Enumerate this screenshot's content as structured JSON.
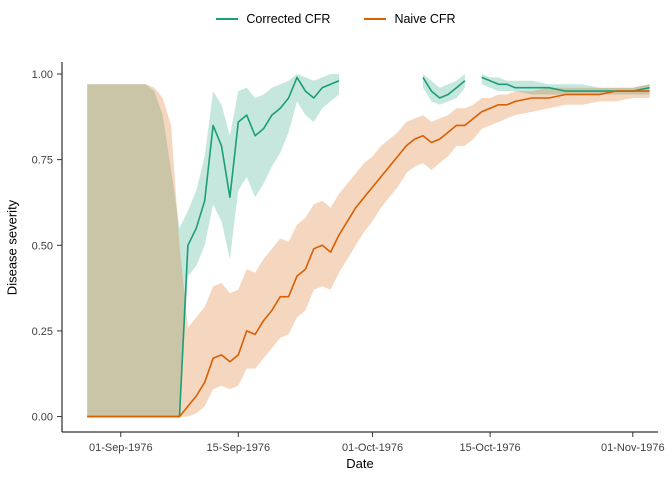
{
  "figure": {
    "bg_color": "#ffffff",
    "axis_color": "#000000",
    "tick_color": "#333333",
    "tick_label_color": "#404040"
  },
  "legend": {
    "items": [
      {
        "label": "Corrected CFR",
        "color": "#1b9e77"
      },
      {
        "label": "Naive CFR",
        "color": "#d95f02"
      }
    ]
  },
  "chart_data": {
    "type": "line",
    "title": "",
    "xlabel": "Date",
    "ylabel": "Disease severity",
    "grid": false,
    "legend_position": "top-center",
    "xlim_days": [
      0,
      71
    ],
    "ylim": [
      -0.045,
      1.035
    ],
    "x_ticks": [
      {
        "day": 7,
        "label": "01-Sep-1976"
      },
      {
        "day": 21,
        "label": "15-Sep-1976"
      },
      {
        "day": 37,
        "label": "01-Oct-1976"
      },
      {
        "day": 51,
        "label": "15-Oct-1976"
      },
      {
        "day": 68,
        "label": "01-Nov-1976"
      }
    ],
    "y_ticks": [
      {
        "value": 0.0,
        "label": "0.00"
      },
      {
        "value": 0.25,
        "label": "0.25"
      },
      {
        "value": 0.5,
        "label": "0.50"
      },
      {
        "value": 0.75,
        "label": "0.75"
      },
      {
        "value": 1.0,
        "label": "1.00"
      }
    ],
    "series": [
      {
        "name": "Corrected CFR",
        "color": "#1b9e77",
        "ribbon_opacity": 0.25,
        "point_format": [
          "day_since_25-Aug-1976",
          "value",
          "ci_lower",
          "ci_upper"
        ],
        "points": [
          [
            3,
            0,
            0,
            0.97
          ],
          [
            5,
            0,
            0,
            0.97
          ],
          [
            7,
            0,
            0,
            0.97
          ],
          [
            9,
            0,
            0,
            0.97
          ],
          [
            10,
            0,
            0,
            0.97
          ],
          [
            11,
            0,
            0,
            0.95
          ],
          [
            12,
            0,
            0,
            0.88
          ],
          [
            13,
            0,
            0,
            0.72
          ],
          [
            14,
            0,
            0,
            0.55
          ],
          [
            15,
            0.5,
            0.41,
            0.6
          ],
          [
            16,
            0.55,
            0.44,
            0.66
          ],
          [
            17,
            0.63,
            0.5,
            0.76
          ],
          [
            18,
            0.85,
            0.62,
            0.95
          ],
          [
            19,
            0.79,
            0.57,
            0.91
          ],
          [
            20,
            0.64,
            0.46,
            0.82
          ],
          [
            21,
            0.86,
            0.66,
            0.95
          ],
          [
            22,
            0.88,
            0.7,
            0.96
          ],
          [
            23,
            0.82,
            0.64,
            0.93
          ],
          [
            24,
            0.84,
            0.68,
            0.94
          ],
          [
            25,
            0.88,
            0.73,
            0.96
          ],
          [
            26,
            0.9,
            0.77,
            0.97
          ],
          [
            27,
            0.93,
            0.83,
            0.98
          ],
          [
            28,
            0.99,
            0.92,
            1.0
          ],
          [
            29,
            0.95,
            0.88,
            0.99
          ],
          [
            30,
            0.93,
            0.86,
            0.98
          ],
          [
            31,
            0.96,
            0.9,
            0.99
          ],
          [
            32,
            0.97,
            0.92,
            1.0
          ],
          [
            33,
            0.98,
            0.94,
            1.0
          ],
          [
            34,
            null,
            null,
            null
          ],
          [
            43,
            0.99,
            0.96,
            1.0
          ],
          [
            44,
            0.95,
            0.92,
            0.98
          ],
          [
            45,
            0.93,
            0.91,
            0.96
          ],
          [
            46,
            0.94,
            0.92,
            0.97
          ],
          [
            47,
            0.96,
            0.93,
            0.98
          ],
          [
            48,
            0.98,
            0.96,
            1.0
          ],
          [
            49,
            null,
            null,
            null
          ],
          [
            50,
            0.99,
            0.97,
            1.0
          ],
          [
            51,
            0.98,
            0.96,
            0.99
          ],
          [
            52,
            0.97,
            0.95,
            0.99
          ],
          [
            53,
            0.97,
            0.95,
            0.98
          ],
          [
            54,
            0.96,
            0.95,
            0.98
          ],
          [
            56,
            0.96,
            0.94,
            0.98
          ],
          [
            58,
            0.96,
            0.94,
            0.97
          ],
          [
            60,
            0.95,
            0.94,
            0.97
          ],
          [
            62,
            0.95,
            0.94,
            0.97
          ],
          [
            64,
            0.95,
            0.94,
            0.96
          ],
          [
            66,
            0.95,
            0.94,
            0.96
          ],
          [
            68,
            0.95,
            0.94,
            0.96
          ],
          [
            70,
            0.96,
            0.94,
            0.97
          ]
        ]
      },
      {
        "name": "Naive CFR",
        "color": "#d95f02",
        "ribbon_opacity": 0.25,
        "point_format": [
          "day_since_25-Aug-1976",
          "value",
          "ci_lower",
          "ci_upper"
        ],
        "points": [
          [
            3,
            0,
            0,
            0.97
          ],
          [
            5,
            0,
            0,
            0.97
          ],
          [
            7,
            0,
            0,
            0.97
          ],
          [
            9,
            0,
            0,
            0.97
          ],
          [
            10,
            0,
            0,
            0.97
          ],
          [
            11,
            0,
            0,
            0.96
          ],
          [
            12,
            0,
            0,
            0.93
          ],
          [
            13,
            0,
            0,
            0.85
          ],
          [
            14,
            0,
            0,
            0.5
          ],
          [
            15,
            0.03,
            0,
            0.26
          ],
          [
            16,
            0.06,
            0.01,
            0.29
          ],
          [
            17,
            0.1,
            0.03,
            0.32
          ],
          [
            18,
            0.17,
            0.08,
            0.38
          ],
          [
            19,
            0.18,
            0.09,
            0.39
          ],
          [
            20,
            0.16,
            0.08,
            0.36
          ],
          [
            21,
            0.18,
            0.09,
            0.37
          ],
          [
            22,
            0.25,
            0.14,
            0.43
          ],
          [
            23,
            0.24,
            0.14,
            0.42
          ],
          [
            24,
            0.28,
            0.17,
            0.46
          ],
          [
            25,
            0.31,
            0.2,
            0.49
          ],
          [
            26,
            0.35,
            0.23,
            0.52
          ],
          [
            27,
            0.35,
            0.24,
            0.51
          ],
          [
            28,
            0.41,
            0.29,
            0.56
          ],
          [
            29,
            0.43,
            0.31,
            0.58
          ],
          [
            30,
            0.49,
            0.37,
            0.62
          ],
          [
            31,
            0.5,
            0.38,
            0.63
          ],
          [
            32,
            0.48,
            0.37,
            0.61
          ],
          [
            33,
            0.53,
            0.42,
            0.65
          ],
          [
            34,
            0.57,
            0.46,
            0.68
          ],
          [
            35,
            0.61,
            0.5,
            0.71
          ],
          [
            36,
            0.64,
            0.54,
            0.74
          ],
          [
            37,
            0.67,
            0.57,
            0.76
          ],
          [
            38,
            0.7,
            0.61,
            0.79
          ],
          [
            39,
            0.73,
            0.64,
            0.81
          ],
          [
            40,
            0.76,
            0.67,
            0.83
          ],
          [
            41,
            0.79,
            0.71,
            0.86
          ],
          [
            42,
            0.81,
            0.73,
            0.87
          ],
          [
            43,
            0.82,
            0.74,
            0.88
          ],
          [
            44,
            0.8,
            0.72,
            0.86
          ],
          [
            45,
            0.81,
            0.74,
            0.87
          ],
          [
            46,
            0.83,
            0.76,
            0.88
          ],
          [
            47,
            0.85,
            0.79,
            0.9
          ],
          [
            48,
            0.85,
            0.79,
            0.9
          ],
          [
            49,
            0.87,
            0.81,
            0.91
          ],
          [
            50,
            0.89,
            0.84,
            0.93
          ],
          [
            51,
            0.9,
            0.85,
            0.93
          ],
          [
            52,
            0.91,
            0.86,
            0.94
          ],
          [
            53,
            0.91,
            0.87,
            0.94
          ],
          [
            54,
            0.92,
            0.88,
            0.95
          ],
          [
            56,
            0.93,
            0.89,
            0.95
          ],
          [
            58,
            0.93,
            0.9,
            0.96
          ],
          [
            60,
            0.94,
            0.91,
            0.96
          ],
          [
            62,
            0.94,
            0.91,
            0.96
          ],
          [
            64,
            0.94,
            0.92,
            0.96
          ],
          [
            66,
            0.95,
            0.92,
            0.96
          ],
          [
            68,
            0.95,
            0.93,
            0.96
          ],
          [
            70,
            0.95,
            0.93,
            0.97
          ]
        ]
      }
    ]
  }
}
